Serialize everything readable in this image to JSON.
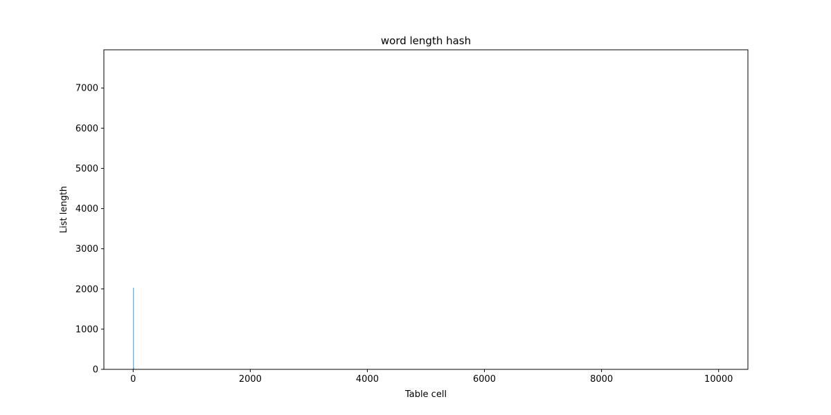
{
  "chart_data": {
    "type": "bar",
    "title": "word length hash",
    "xlabel": "Table cell",
    "ylabel": "List length",
    "xlim": [
      -500,
      10500
    ],
    "ylim": [
      0,
      7950
    ],
    "xticks": [
      0,
      2000,
      4000,
      6000,
      8000,
      10000
    ],
    "yticks": [
      0,
      1000,
      2000,
      3000,
      4000,
      5000,
      6000,
      7000
    ],
    "grid": false,
    "bar_color": "#1f77b4",
    "bars": [
      {
        "x": 1,
        "y": 40
      },
      {
        "x": 2,
        "y": 2030
      },
      {
        "x": 3,
        "y": 30
      },
      {
        "x": 4,
        "y": 15
      },
      {
        "x": 5,
        "y": 8
      }
    ]
  }
}
